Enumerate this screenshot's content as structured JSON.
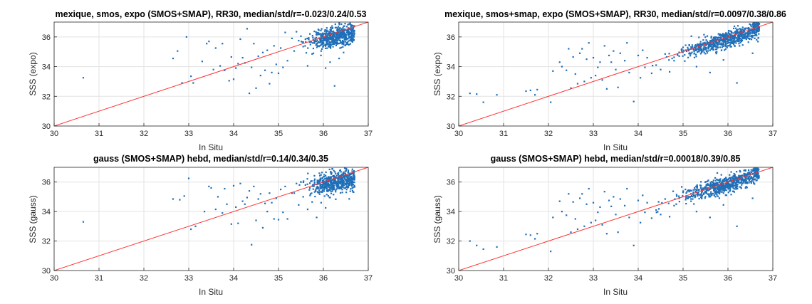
{
  "colors": {
    "points": "#1f6fb8",
    "fit_line": "#ff3030",
    "grid": "#e3e3e3",
    "axes": "#262626"
  },
  "chart_data": [
    {
      "type": "scatter",
      "title": "mexique, smos, expo (SMOS+SMAP), RR30, median/std/r=-0.023/0.24/0.53",
      "xlabel": "In Situ",
      "ylabel": "SSS (expo)",
      "xlim": [
        30,
        37
      ],
      "ylim": [
        30,
        37
      ],
      "xticks": [
        30,
        31,
        32,
        33,
        34,
        35,
        36,
        37
      ],
      "yticks": [
        30,
        32,
        34,
        36
      ],
      "grid": true,
      "reference_line": [
        [
          30,
          30
        ],
        [
          37,
          37
        ]
      ],
      "cluster": {
        "x": 36.3,
        "y": 36.0,
        "n": 560,
        "spread_x": 0.3,
        "spread_y": 0.35,
        "slope": 0.55
      },
      "x": [
        30.65,
        32.65,
        32.75,
        32.85,
        32.95,
        33.05,
        33.1,
        33.3,
        33.4,
        33.45,
        33.55,
        33.6,
        33.7,
        33.75,
        33.8,
        33.9,
        33.95,
        34.0,
        34.05,
        34.1,
        34.15,
        34.2,
        34.25,
        34.3,
        34.35,
        34.4,
        34.45,
        34.5,
        34.55,
        34.6,
        34.65,
        34.7,
        34.75,
        34.8,
        34.85,
        34.9,
        34.95,
        35.0,
        35.05,
        35.1,
        35.15,
        35.2,
        35.3,
        35.4,
        35.5,
        35.6,
        35.7,
        35.8,
        35.9,
        35.35,
        35.45,
        35.55,
        35.65,
        35.75,
        35.85,
        35.95,
        36.05,
        36.15,
        36.25,
        36.35,
        36.45
      ],
      "y": [
        33.25,
        34.55,
        35.05,
        32.9,
        36.0,
        33.35,
        32.9,
        34.35,
        35.55,
        35.7,
        33.8,
        35.25,
        34.05,
        35.55,
        33.75,
        33.05,
        34.65,
        33.15,
        33.9,
        34.2,
        35.85,
        34.6,
        34.25,
        36.55,
        32.2,
        33.95,
        35.55,
        32.55,
        34.7,
        33.4,
        34.95,
        33.75,
        35.1,
        32.85,
        33.6,
        35.4,
        34.15,
        33.55,
        35.25,
        33.95,
        36.3,
        34.4,
        35.9,
        36.35,
        36.05,
        35.85,
        36.2,
        35.6,
        36.45,
        35.05,
        35.75,
        35.35,
        34.05,
        34.85,
        35.55,
        35.05,
        33.9,
        34.3,
        32.7,
        34.55,
        34.95
      ]
    },
    {
      "type": "scatter",
      "title": "mexique, smos+smap, expo (SMOS+SMAP), RR30, median/std/r=0.0097/0.38/0.86",
      "xlabel": "In Situ",
      "ylabel": "SSS (expo)",
      "xlim": [
        30,
        37
      ],
      "ylim": [
        30,
        37
      ],
      "xticks": [
        30,
        31,
        32,
        33,
        34,
        35,
        36,
        37
      ],
      "yticks": [
        30,
        32,
        34,
        36
      ],
      "grid": true,
      "reference_line": [
        [
          30,
          30
        ],
        [
          37,
          37
        ]
      ],
      "cluster": {
        "x": 36.0,
        "y": 35.85,
        "n": 700,
        "spread_x": 0.5,
        "spread_y": 0.28,
        "slope": 0.9
      },
      "x": [
        30.25,
        30.4,
        30.55,
        30.85,
        31.5,
        31.6,
        31.7,
        31.75,
        32.05,
        32.1,
        32.25,
        32.3,
        32.4,
        32.45,
        32.5,
        32.55,
        32.6,
        32.65,
        32.7,
        32.75,
        32.8,
        32.85,
        32.9,
        32.95,
        33.0,
        33.05,
        33.1,
        33.15,
        33.2,
        33.25,
        33.3,
        33.35,
        33.4,
        33.45,
        33.5,
        33.55,
        33.6,
        33.7,
        33.75,
        33.8,
        33.9,
        34.0,
        34.05,
        34.1,
        34.15,
        34.2,
        34.3,
        34.4,
        34.5,
        34.6,
        34.7,
        34.8,
        35.0,
        35.3,
        35.6,
        35.9,
        36.2,
        36.55
      ],
      "y": [
        32.2,
        32.15,
        31.6,
        32.1,
        32.35,
        32.4,
        32.1,
        32.45,
        31.6,
        33.7,
        34.3,
        34.0,
        33.75,
        35.2,
        32.55,
        34.65,
        33.5,
        32.85,
        34.9,
        35.2,
        33.0,
        34.5,
        35.6,
        33.25,
        34.6,
        33.4,
        33.95,
        34.3,
        33.1,
        35.4,
        32.5,
        34.75,
        34.3,
        35.05,
        33.8,
        32.6,
        34.9,
        34.4,
        35.6,
        33.6,
        31.65,
        34.75,
        33.25,
        35.1,
        33.95,
        34.6,
        33.55,
        34.1,
        33.8,
        34.85,
        33.65,
        34.4,
        35.3,
        34.0,
        33.6,
        34.45,
        32.9,
        34.9
      ]
    },
    {
      "type": "scatter",
      "title": "gauss (SMOS+SMAP) hebd, median/std/r=0.14/0.34/0.35",
      "xlabel": "In Situ",
      "ylabel": "SSS (gauss)",
      "xlim": [
        30,
        37
      ],
      "ylim": [
        30,
        37
      ],
      "xticks": [
        30,
        31,
        32,
        33,
        34,
        35,
        36,
        37
      ],
      "yticks": [
        30,
        32,
        34,
        36
      ],
      "grid": true,
      "reference_line": [
        [
          30,
          30
        ],
        [
          37,
          37
        ]
      ],
      "cluster": {
        "x": 36.3,
        "y": 36.0,
        "n": 560,
        "spread_x": 0.3,
        "spread_y": 0.38,
        "slope": 0.5
      },
      "x": [
        30.65,
        32.65,
        32.8,
        32.9,
        33.0,
        33.05,
        33.15,
        33.35,
        33.45,
        33.5,
        33.6,
        33.65,
        33.75,
        33.8,
        33.85,
        33.95,
        34.0,
        34.05,
        34.1,
        34.15,
        34.2,
        34.25,
        34.3,
        34.35,
        34.4,
        34.45,
        34.5,
        34.55,
        34.6,
        34.65,
        34.7,
        34.75,
        34.8,
        34.85,
        34.9,
        34.95,
        35.0,
        35.05,
        35.1,
        35.15,
        35.2,
        35.3,
        35.4,
        35.5,
        35.6,
        35.7,
        35.8,
        35.9,
        35.35,
        35.45,
        35.55,
        35.65,
        35.75,
        35.85,
        35.95,
        36.05,
        36.15
      ],
      "y": [
        33.3,
        34.85,
        34.8,
        35.05,
        36.25,
        32.8,
        33.0,
        34.0,
        35.7,
        35.6,
        34.15,
        35.0,
        33.9,
        35.55,
        34.5,
        33.15,
        35.75,
        34.3,
        33.2,
        35.9,
        34.7,
        34.5,
        34.95,
        35.4,
        31.75,
        35.7,
        33.4,
        34.85,
        35.2,
        32.9,
        34.55,
        34.0,
        35.25,
        34.6,
        33.5,
        34.9,
        33.45,
        35.5,
        33.95,
        35.7,
        33.5,
        35.25,
        35.9,
        36.0,
        35.8,
        35.6,
        36.1,
        35.95,
        35.25,
        34.45,
        35.0,
        34.15,
        34.65,
        33.6,
        34.6,
        34.25,
        34.95
      ]
    },
    {
      "type": "scatter",
      "title": "gauss (SMOS+SMAP) hebd, median/std/r=0.00018/0.39/0.85",
      "xlabel": "In Situ",
      "ylabel": "SSS (gauss)",
      "xlim": [
        30,
        37
      ],
      "ylim": [
        30,
        37
      ],
      "xticks": [
        30,
        31,
        32,
        33,
        34,
        35,
        36,
        37
      ],
      "yticks": [
        30,
        32,
        34,
        36
      ],
      "grid": true,
      "reference_line": [
        [
          30,
          30
        ],
        [
          37,
          37
        ]
      ],
      "cluster": {
        "x": 36.0,
        "y": 35.9,
        "n": 700,
        "spread_x": 0.5,
        "spread_y": 0.28,
        "slope": 0.9
      },
      "x": [
        30.25,
        30.4,
        30.55,
        30.85,
        31.5,
        31.6,
        31.7,
        31.75,
        32.05,
        32.1,
        32.25,
        32.3,
        32.4,
        32.45,
        32.5,
        32.55,
        32.6,
        32.65,
        32.7,
        32.75,
        32.8,
        32.85,
        32.9,
        32.95,
        33.0,
        33.05,
        33.1,
        33.15,
        33.2,
        33.25,
        33.3,
        33.35,
        33.4,
        33.45,
        33.5,
        33.55,
        33.6,
        33.7,
        33.75,
        33.8,
        33.9,
        34.0,
        34.05,
        34.1,
        34.15,
        34.2,
        34.3,
        34.4,
        34.5,
        34.6,
        34.7,
        34.8,
        35.0,
        35.3,
        35.6,
        35.9,
        36.2,
        36.55
      ],
      "y": [
        32.0,
        31.7,
        31.45,
        31.6,
        32.45,
        32.4,
        32.15,
        32.5,
        31.3,
        33.6,
        34.7,
        34.0,
        33.75,
        35.2,
        32.6,
        34.65,
        33.5,
        32.8,
        34.9,
        35.2,
        33.0,
        34.5,
        35.55,
        33.25,
        34.6,
        33.4,
        33.95,
        34.3,
        33.1,
        35.35,
        32.5,
        34.75,
        34.35,
        35.0,
        33.8,
        32.6,
        34.85,
        34.4,
        35.55,
        33.6,
        31.7,
        34.75,
        33.25,
        35.1,
        33.95,
        34.6,
        33.55,
        34.1,
        33.8,
        34.85,
        33.65,
        34.4,
        35.3,
        34.0,
        33.6,
        34.45,
        33.0,
        34.9
      ]
    }
  ]
}
